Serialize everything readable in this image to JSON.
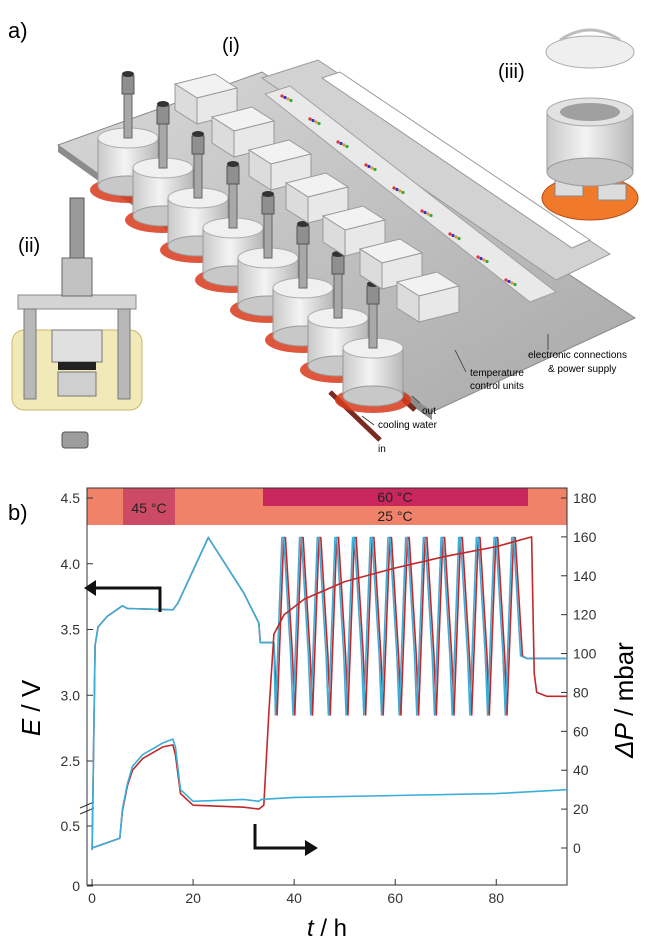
{
  "panel_a": {
    "label": "a)",
    "sub_i": "(i)",
    "sub_ii": "(ii)",
    "sub_iii": "(iii)",
    "annotations": {
      "temperature_control_1": "temperature",
      "temperature_control_2": "control units",
      "electronic_1": "electronic connections",
      "electronic_2": "& power supply",
      "cooling_water": "cooling water",
      "in": "in",
      "out": "out"
    },
    "colors": {
      "plate": "#bfbfbf",
      "cell": "#e6e6e6",
      "heater": "#d83a1a",
      "base_orange": "#f07a2a"
    }
  },
  "panel_b": {
    "label": "b)",
    "bands": {
      "base": "25 °C",
      "warm": "45 °C",
      "hot": "60 °C",
      "colors": {
        "base": "#f0826a",
        "warm": "#cc4a63",
        "hot": "#c8265c"
      }
    },
    "xlabel_var": "t",
    "xlabel_unit": " / h",
    "ylabel_left_var": "E",
    "ylabel_left_unit": " / V",
    "ylabel_right_var": "ΔP",
    "ylabel_right_unit": " / mbar"
  },
  "chart_data": {
    "type": "line",
    "xlim": [
      -1,
      94
    ],
    "x_ticks": [
      0,
      20,
      40,
      60,
      80
    ],
    "y_left_ticks_upper": [
      "2.5",
      "3.0",
      "3.5",
      "4.0",
      "4.5"
    ],
    "y_left_ticks_lower": [
      "0",
      "0.5"
    ],
    "y_right_ticks": [
      0,
      20,
      40,
      60,
      80,
      100,
      120,
      140,
      160,
      180
    ],
    "y_left_scale_note": "broken axis between 0.5 and 2.5 V",
    "colors": {
      "blue": "#3aaed8",
      "red": "#c0282b"
    },
    "series": [
      {
        "axis": "left",
        "color": "blue",
        "x": [
          0,
          0.6,
          1.2,
          3,
          6,
          7,
          16,
          17,
          23,
          30,
          33,
          33.3,
          36
        ],
        "y": [
          0.3,
          3.38,
          3.52,
          3.6,
          3.68,
          3.66,
          3.65,
          3.7,
          4.2,
          3.78,
          3.55,
          3.4,
          3.4
        ]
      },
      {
        "axis": "left",
        "color": "red",
        "x": [
          0,
          0.6,
          1.2,
          3,
          6,
          7,
          16,
          17,
          23,
          30,
          33,
          33.3,
          36
        ],
        "y": [
          0.3,
          3.38,
          3.52,
          3.6,
          3.68,
          3.66,
          3.65,
          3.7,
          4.2,
          3.78,
          3.55,
          3.4,
          3.4
        ]
      },
      {
        "axis": "right",
        "color": "blue",
        "x": [
          0,
          5.5,
          6,
          7,
          8,
          10,
          14,
          16,
          16.5,
          17.5,
          20,
          30,
          33,
          33.5,
          40,
          60,
          80,
          94
        ],
        "y": [
          0,
          5,
          20,
          33,
          42,
          48,
          54,
          56,
          52,
          30,
          24,
          25,
          24,
          25,
          26,
          27,
          28,
          30
        ]
      },
      {
        "axis": "right",
        "color": "red",
        "x": [
          0,
          5.5,
          6,
          7,
          8,
          10,
          14,
          16,
          16.5,
          17.5,
          20,
          30,
          33,
          34,
          35,
          36,
          38,
          42,
          50,
          60,
          70,
          80,
          87,
          87.5,
          88,
          90,
          94
        ],
        "y": [
          0,
          5,
          19,
          32,
          40,
          46,
          52,
          53,
          48,
          28,
          22,
          21,
          20,
          22,
          70,
          110,
          120,
          128,
          137,
          144,
          150,
          155,
          160,
          90,
          80,
          78,
          78
        ]
      },
      {
        "axis": "left",
        "color": "blue",
        "name": "",
        "x": [
          36,
          85
        ],
        "y": [
          2.85,
          4.2
        ],
        "note": "repeated charge/discharge cycles between 2.85 V and 4.20 V (~14 cycles); after 86 h E held near 3.28 V"
      }
    ]
  }
}
